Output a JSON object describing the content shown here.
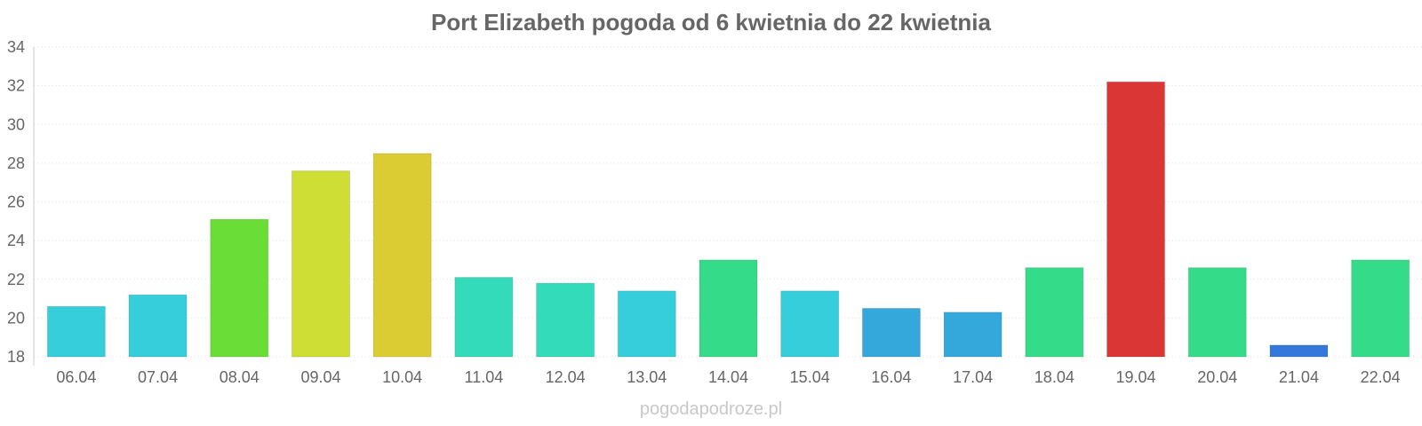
{
  "chart_data": {
    "type": "bar",
    "title": "Port Elizabeth pogoda od 6 kwietnia do 22 kwietnia",
    "xlabel": "",
    "ylabel": "",
    "ylim": [
      18,
      34
    ],
    "yticks": [
      "18",
      "20",
      "22",
      "24",
      "26",
      "28",
      "30",
      "32",
      "34"
    ],
    "grid": true,
    "categories": [
      "06.04",
      "07.04",
      "08.04",
      "09.04",
      "10.04",
      "11.04",
      "12.04",
      "13.04",
      "14.04",
      "15.04",
      "16.04",
      "17.04",
      "18.04",
      "19.04",
      "20.04",
      "21.04",
      "22.04"
    ],
    "values": [
      20.6,
      21.2,
      25.1,
      27.6,
      28.5,
      22.1,
      21.8,
      21.4,
      23.0,
      21.4,
      20.5,
      20.3,
      22.6,
      32.2,
      22.6,
      18.6,
      23.0
    ],
    "colors": [
      "#36cedb",
      "#36cedb",
      "#6ade36",
      "#cfde34",
      "#dbcc34",
      "#34dbbb",
      "#34dbbb",
      "#36cedb",
      "#34db88",
      "#36cedb",
      "#35a8db",
      "#35a8db",
      "#34db88",
      "#db3636",
      "#34db88",
      "#3478db",
      "#34db88"
    ]
  },
  "watermark": "pogodapodroze.pl"
}
